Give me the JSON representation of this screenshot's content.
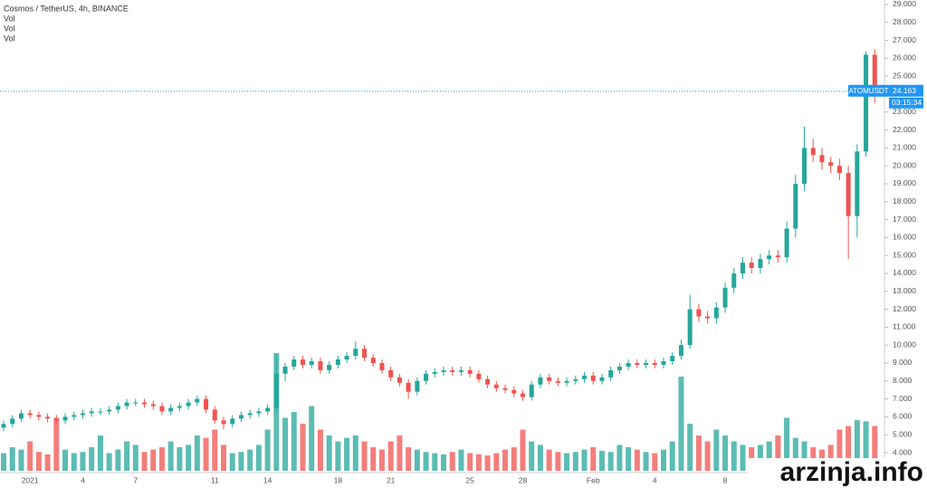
{
  "chart_data": {
    "type": "candlestick",
    "title": "Cosmos / TetherUS, 4h, BINANCE",
    "indicators": [
      "Vol",
      "Vol",
      "Vol"
    ],
    "symbol": "ATOMUSDT",
    "price_line": {
      "value": 24.163,
      "label": "24.163"
    },
    "countdown": "03:15:34",
    "watermark": "arzinja.info",
    "up_color": "#26a69a",
    "down_color": "#ef5350",
    "grid": false,
    "categories": [
      null,
      null,
      null,
      "2021",
      null,
      null,
      null,
      null,
      null,
      "4",
      null,
      null,
      null,
      null,
      null,
      "7",
      null,
      null,
      null,
      null,
      null,
      null,
      null,
      null,
      "11",
      null,
      null,
      null,
      null,
      null,
      "14",
      null,
      null,
      null,
      null,
      null,
      null,
      null,
      "18",
      null,
      null,
      null,
      null,
      null,
      "21",
      null,
      null,
      null,
      null,
      null,
      null,
      null,
      null,
      "25",
      null,
      null,
      null,
      null,
      null,
      "28",
      null,
      null,
      null,
      null,
      null,
      null,
      null,
      "Feb",
      null,
      null,
      null,
      null,
      null,
      null,
      "4",
      null,
      null,
      null,
      null,
      null,
      null,
      null,
      "8",
      null,
      null,
      null,
      null,
      null,
      null,
      null,
      null,
      null,
      null,
      null,
      null,
      null,
      null,
      null,
      null,
      null
    ],
    "open": [
      5.4,
      5.6,
      5.9,
      6.2,
      6.1,
      6.0,
      5.9,
      5.8,
      6.0,
      6.1,
      6.2,
      6.3,
      6.3,
      6.4,
      6.6,
      6.8,
      6.8,
      6.7,
      6.6,
      6.3,
      6.5,
      6.6,
      6.8,
      7.0,
      6.4,
      5.8,
      5.6,
      5.9,
      6.1,
      6.2,
      6.3,
      6.5,
      8.4,
      8.8,
      9.2,
      8.9,
      9.1,
      8.6,
      8.9,
      9.2,
      9.4,
      9.8,
      9.3,
      9.0,
      8.6,
      8.2,
      7.9,
      7.4,
      8.0,
      8.4,
      8.5,
      8.6,
      8.5,
      8.6,
      8.4,
      8.1,
      7.8,
      7.6,
      7.5,
      7.3,
      7.1,
      7.8,
      8.2,
      8.0,
      7.9,
      8.0,
      8.1,
      8.3,
      8.0,
      8.2,
      8.6,
      8.8,
      9.0,
      8.9,
      9.0,
      8.9,
      9.1,
      9.4,
      10.0,
      12.0,
      11.6,
      11.5,
      12.1,
      13.2,
      14.0,
      14.6,
      14.3,
      14.8,
      15.0,
      14.9,
      16.5,
      19.0,
      21.0,
      20.6,
      20.2,
      20.0,
      19.6,
      17.2,
      20.8,
      26.2
    ],
    "high": [
      5.8,
      6.1,
      6.4,
      6.4,
      6.3,
      6.2,
      6.1,
      6.2,
      6.3,
      6.4,
      6.5,
      6.5,
      6.6,
      6.8,
      7.0,
      7.0,
      7.0,
      6.9,
      6.8,
      6.7,
      6.8,
      7.0,
      7.2,
      7.2,
      6.6,
      6.0,
      6.1,
      6.3,
      6.4,
      6.5,
      6.7,
      9.4,
      9.0,
      9.4,
      9.4,
      9.3,
      9.3,
      9.1,
      9.4,
      9.6,
      10.2,
      10.0,
      9.5,
      9.2,
      8.8,
      8.4,
      8.1,
      8.2,
      8.6,
      8.7,
      8.8,
      8.8,
      8.8,
      8.8,
      8.6,
      8.3,
      8.0,
      7.8,
      7.7,
      7.5,
      8.0,
      8.4,
      8.4,
      8.2,
      8.2,
      8.3,
      8.5,
      8.5,
      8.4,
      8.8,
      9.0,
      9.2,
      9.2,
      9.2,
      9.2,
      9.3,
      9.6,
      10.3,
      12.8,
      12.3,
      11.9,
      12.4,
      13.5,
      14.3,
      14.9,
      14.9,
      15.1,
      15.3,
      15.3,
      16.9,
      19.5,
      22.2,
      21.5,
      21.0,
      20.5,
      20.4,
      20.0,
      21.2,
      26.4,
      26.5
    ],
    "low": [
      5.2,
      5.4,
      5.7,
      5.9,
      5.8,
      5.7,
      5.6,
      5.6,
      5.8,
      5.9,
      6.0,
      6.1,
      6.1,
      6.2,
      6.4,
      6.6,
      6.5,
      6.4,
      6.1,
      6.1,
      6.3,
      6.4,
      6.6,
      6.2,
      5.6,
      5.3,
      5.4,
      5.7,
      5.9,
      6.0,
      6.1,
      6.3,
      8.0,
      8.6,
      8.7,
      8.7,
      8.4,
      8.4,
      8.7,
      9.0,
      9.2,
      9.1,
      8.8,
      8.4,
      8.0,
      7.7,
      7.0,
      7.2,
      7.8,
      8.2,
      8.3,
      8.3,
      8.3,
      8.2,
      7.9,
      7.6,
      7.4,
      7.3,
      7.1,
      6.9,
      6.9,
      7.6,
      7.8,
      7.7,
      7.7,
      7.8,
      7.9,
      7.8,
      7.8,
      8.0,
      8.4,
      8.6,
      8.7,
      8.7,
      8.7,
      8.7,
      8.9,
      9.2,
      9.8,
      11.3,
      11.2,
      11.2,
      11.8,
      12.9,
      13.7,
      14.0,
      14.0,
      14.5,
      14.6,
      14.6,
      16.0,
      18.6,
      20.2,
      19.8,
      19.6,
      19.2,
      14.8,
      16.0,
      20.5,
      23.5
    ],
    "close": [
      5.6,
      5.9,
      6.2,
      6.1,
      6.0,
      5.9,
      5.8,
      6.0,
      6.1,
      6.2,
      6.3,
      6.3,
      6.4,
      6.6,
      6.8,
      6.8,
      6.7,
      6.6,
      6.3,
      6.5,
      6.6,
      6.8,
      7.0,
      6.4,
      5.8,
      5.6,
      5.9,
      6.1,
      6.2,
      6.3,
      6.5,
      8.4,
      8.8,
      9.2,
      8.9,
      9.1,
      8.6,
      8.9,
      9.2,
      9.4,
      9.8,
      9.3,
      9.0,
      8.6,
      8.2,
      7.9,
      7.4,
      8.0,
      8.4,
      8.5,
      8.6,
      8.5,
      8.6,
      8.4,
      8.1,
      7.8,
      7.6,
      7.5,
      7.3,
      7.1,
      7.8,
      8.2,
      8.0,
      7.9,
      8.0,
      8.1,
      8.3,
      8.0,
      8.2,
      8.6,
      8.8,
      9.0,
      8.9,
      9.0,
      8.9,
      9.1,
      9.4,
      10.0,
      12.0,
      11.6,
      11.5,
      12.1,
      13.2,
      14.0,
      14.6,
      14.3,
      14.8,
      15.0,
      14.9,
      16.5,
      19.0,
      21.0,
      20.6,
      20.2,
      20.0,
      19.6,
      17.2,
      20.8,
      26.2,
      24.163
    ],
    "volume": [
      1.5,
      2,
      1.8,
      2.5,
      1.6,
      1.4,
      4.5,
      1.8,
      1.5,
      1.6,
      2,
      3,
      1.5,
      1.8,
      2.5,
      2.2,
      1.6,
      1.8,
      2,
      2.5,
      2,
      2.2,
      3,
      2.8,
      3.5,
      2.2,
      1.5,
      1.6,
      1.8,
      2.2,
      3.5,
      10,
      4.5,
      5,
      4,
      5.5,
      3.5,
      3,
      2.5,
      2.8,
      3,
      2.5,
      2,
      1.8,
      2.5,
      3,
      2,
      1.8,
      1.6,
      1.5,
      1.4,
      1.6,
      1.8,
      1.5,
      1.4,
      1.3,
      1.5,
      1.8,
      2,
      3.5,
      2.5,
      2.2,
      1.8,
      1.6,
      1.5,
      1.6,
      1.8,
      2,
      1.7,
      1.6,
      2.2,
      2,
      1.8,
      1.6,
      1.5,
      1.8,
      2.5,
      8,
      4,
      3,
      2.5,
      3.5,
      3,
      2.5,
      2.2,
      2,
      2.2,
      2.5,
      3,
      4.5,
      2.8,
      2.5,
      2,
      1.8,
      2.2,
      3.5,
      3.8,
      4.3,
      4.2,
      3.8
    ],
    "volume_lim": [
      0,
      40
    ],
    "ylim": [
      2.99,
      29.25
    ],
    "yticks": [
      {
        "value": 4,
        "label": "4.000"
      },
      {
        "value": 5,
        "label": "5.000"
      },
      {
        "value": 6,
        "label": "6.000"
      },
      {
        "value": 7,
        "label": "7.000"
      },
      {
        "value": 8,
        "label": "8.000"
      },
      {
        "value": 9,
        "label": "9.000"
      },
      {
        "value": 10,
        "label": "10.000"
      },
      {
        "value": 11,
        "label": "11.000"
      },
      {
        "value": 12,
        "label": "12.000"
      },
      {
        "value": 13,
        "label": "13.000"
      },
      {
        "value": 14,
        "label": "14.000"
      },
      {
        "value": 15,
        "label": "15.000"
      },
      {
        "value": 16,
        "label": "16.000"
      },
      {
        "value": 17,
        "label": "17.000"
      },
      {
        "value": 18,
        "label": "18.000"
      },
      {
        "value": 19,
        "label": "19.000"
      },
      {
        "value": 20,
        "label": "20.000"
      },
      {
        "value": 21,
        "label": "21.000"
      },
      {
        "value": 22,
        "label": "22.000"
      },
      {
        "value": 23,
        "label": "23.000"
      },
      {
        "value": 24,
        "label": "24.000"
      },
      {
        "value": 25,
        "label": "25.000"
      },
      {
        "value": 26,
        "label": "26.000"
      },
      {
        "value": 27,
        "label": "27.000"
      },
      {
        "value": 28,
        "label": "28.000"
      },
      {
        "value": 29,
        "label": "29.000"
      }
    ]
  }
}
